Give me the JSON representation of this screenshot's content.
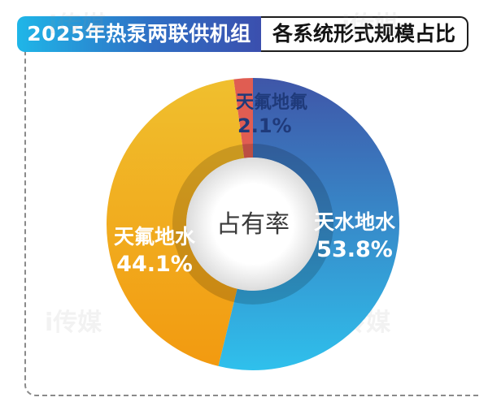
{
  "header": {
    "title_left": "2025年热泵两联供机组",
    "title_right": "各系统形式规模占比"
  },
  "watermark": "i传媒",
  "chart_data": {
    "type": "pie",
    "title": "2025年热泵两联供机组 各系统形式规模占比",
    "center_label": "占有率",
    "slices": [
      {
        "name": "天水地水",
        "value": 53.8,
        "label": "53.8%",
        "color_start": "#3f56a8",
        "color_end": "#2fc0ec"
      },
      {
        "name": "天氟地水",
        "value": 44.1,
        "label": "44.1%",
        "color_start": "#f0bf2e",
        "color_end": "#f29a10"
      },
      {
        "name": "天氟地氟",
        "value": 2.1,
        "label": "2.1%",
        "color_start": "#e05d52",
        "color_end": "#e05d52"
      }
    ]
  }
}
